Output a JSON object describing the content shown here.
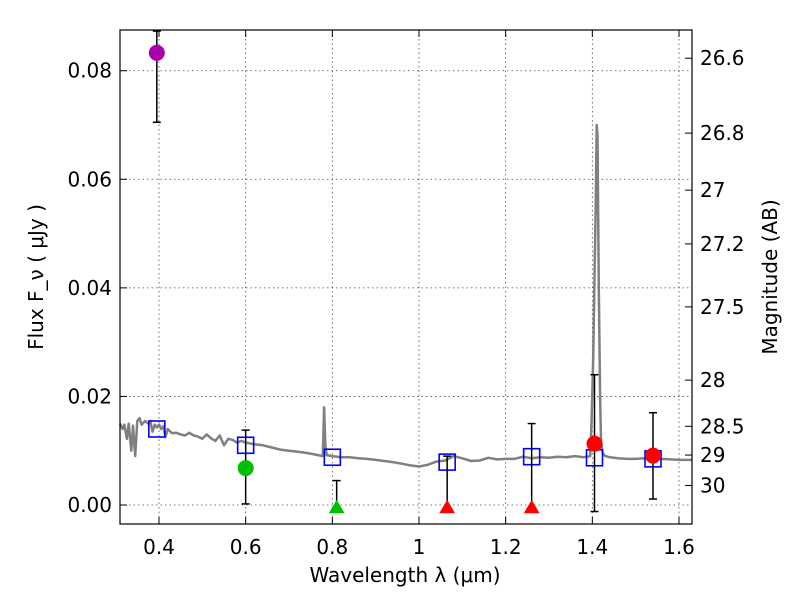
{
  "chart_data": {
    "type": "scatter",
    "title": "",
    "xlabel": "Wavelength  λ (μm)",
    "ylabel": "Flux  F_ν  ( μJy )",
    "y2label": "Magnitude (AB)",
    "xlim": [
      0.31,
      1.63
    ],
    "ylim": [
      -0.0035,
      0.0875
    ],
    "grid": true,
    "x_ticks": [
      0.4,
      0.6,
      0.8,
      1.0,
      1.2,
      1.4,
      1.6
    ],
    "x_tick_labels": [
      "0.4",
      "0.6",
      "0.8",
      "1",
      "1.2",
      "1.4",
      "1.6"
    ],
    "y_ticks": [
      0.0,
      0.02,
      0.04,
      0.06,
      0.08
    ],
    "y_tick_labels": [
      "0.00",
      "0.02",
      "0.04",
      "0.06",
      "0.08"
    ],
    "y2_ticks": [
      {
        "flux": 0.0823,
        "label": "26.6"
      },
      {
        "flux": 0.0685,
        "label": "26.8"
      },
      {
        "flux": 0.058,
        "label": "27"
      },
      {
        "flux": 0.0481,
        "label": "27.2"
      },
      {
        "flux": 0.0365,
        "label": "27.5"
      },
      {
        "flux": 0.023,
        "label": "28"
      },
      {
        "flux": 0.0145,
        "label": "28.5"
      },
      {
        "flux": 0.0092,
        "label": "29"
      },
      {
        "flux": 0.0036,
        "label": "30"
      }
    ],
    "series": [
      {
        "name": "Model spectrum",
        "style": "line",
        "color": "#808080",
        "x": [
          0.31,
          0.316,
          0.32,
          0.326,
          0.33,
          0.336,
          0.34,
          0.345,
          0.35,
          0.355,
          0.36,
          0.368,
          0.375,
          0.38,
          0.385,
          0.39,
          0.395,
          0.4,
          0.405,
          0.41,
          0.415,
          0.42,
          0.43,
          0.44,
          0.45,
          0.46,
          0.47,
          0.48,
          0.49,
          0.5,
          0.51,
          0.52,
          0.53,
          0.54,
          0.55,
          0.56,
          0.57,
          0.58,
          0.59,
          0.6,
          0.62,
          0.64,
          0.66,
          0.68,
          0.7,
          0.72,
          0.74,
          0.76,
          0.778,
          0.781,
          0.784,
          0.787,
          0.8,
          0.82,
          0.84,
          0.86,
          0.88,
          0.9,
          0.92,
          0.94,
          0.96,
          0.98,
          1.0,
          1.02,
          1.04,
          1.06,
          1.08,
          1.1,
          1.12,
          1.14,
          1.16,
          1.18,
          1.2,
          1.22,
          1.24,
          1.26,
          1.28,
          1.3,
          1.32,
          1.34,
          1.36,
          1.38,
          1.395,
          1.398,
          1.402,
          1.405,
          1.408,
          1.41,
          1.412,
          1.415,
          1.418,
          1.42,
          1.424,
          1.43,
          1.44,
          1.46,
          1.48,
          1.5,
          1.52,
          1.54,
          1.56,
          1.58,
          1.6,
          1.63
        ],
        "y": [
          0.015,
          0.014,
          0.0148,
          0.0122,
          0.015,
          0.01,
          0.0146,
          0.009,
          0.0155,
          0.016,
          0.0148,
          0.0155,
          0.015,
          0.0155,
          0.0135,
          0.0148,
          0.0143,
          0.0148,
          0.014,
          0.0145,
          0.0125,
          0.014,
          0.0132,
          0.0133,
          0.013,
          0.0128,
          0.0133,
          0.0128,
          0.0126,
          0.0122,
          0.013,
          0.0123,
          0.0118,
          0.0128,
          0.011,
          0.0122,
          0.012,
          0.0115,
          0.0118,
          0.0115,
          0.0112,
          0.011,
          0.0106,
          0.0102,
          0.01,
          0.0098,
          0.0096,
          0.0093,
          0.009,
          0.018,
          0.011,
          0.0092,
          0.009,
          0.0088,
          0.0088,
          0.0086,
          0.0085,
          0.0083,
          0.0081,
          0.0079,
          0.0076,
          0.0073,
          0.0071,
          0.0074,
          0.008,
          0.0082,
          0.009,
          0.0086,
          0.0081,
          0.0082,
          0.0087,
          0.0084,
          0.0085,
          0.0085,
          0.0089,
          0.0086,
          0.0088,
          0.0087,
          0.0089,
          0.0088,
          0.009,
          0.0088,
          0.009,
          0.015,
          0.027,
          0.042,
          0.056,
          0.07,
          0.068,
          0.04,
          0.02,
          0.012,
          0.0095,
          0.009,
          0.0088,
          0.0086,
          0.0085,
          0.0085,
          0.0086,
          0.0084,
          0.0085,
          0.0084,
          0.0083,
          0.0083
        ]
      },
      {
        "name": "Model band fluxes",
        "style": "open-square",
        "color": "#0000ff",
        "x": [
          0.395,
          0.6,
          0.8,
          1.065,
          1.26,
          1.405,
          1.54
        ],
        "y": [
          0.014,
          0.011,
          0.0088,
          0.0079,
          0.0089,
          0.0087,
          0.0085
        ]
      },
      {
        "name": "Purple detection",
        "style": "filled-circle",
        "color": "#aa00aa",
        "x": [
          0.395
        ],
        "y": [
          0.0833
        ],
        "yerr_low": [
          0.0128
        ],
        "yerr_high": [
          0.004
        ]
      },
      {
        "name": "Green detection",
        "style": "filled-circle",
        "color": "#00c000",
        "x": [
          0.6
        ],
        "y": [
          0.0068
        ],
        "yerr_low": [
          0.0066
        ],
        "yerr_high": [
          0.007
        ]
      },
      {
        "name": "Red detections",
        "style": "filled-circle",
        "color": "#ff0000",
        "x": [
          1.405,
          1.54
        ],
        "y": [
          0.0113,
          0.0091
        ],
        "yerr_low": [
          0.0125,
          0.008
        ],
        "yerr_high": [
          0.0127,
          0.0079
        ]
      },
      {
        "name": "Green upper limit",
        "style": "triangle",
        "color": "#00c000",
        "x": [
          0.81
        ],
        "y": [
          -0.0005
        ],
        "yerr_low": [
          0.0
        ],
        "yerr_high": [
          0.005
        ]
      },
      {
        "name": "Red upper limits",
        "style": "triangle",
        "color": "#ff0000",
        "x": [
          1.065,
          1.26
        ],
        "y": [
          -0.0005,
          -0.0005
        ],
        "yerr_low": [
          0.0,
          0.0
        ],
        "yerr_high": [
          0.0095,
          0.0155
        ]
      }
    ]
  }
}
